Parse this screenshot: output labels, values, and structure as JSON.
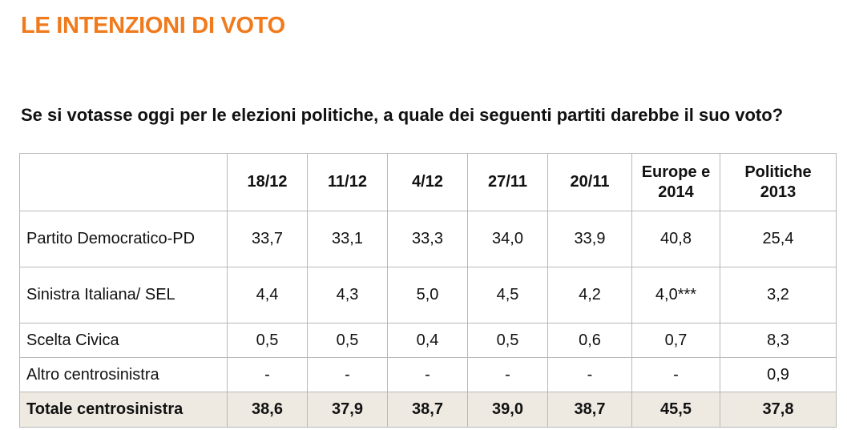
{
  "page": {
    "title": "LE INTENZIONI DI VOTO",
    "question": "Se si votasse oggi per le elezioni politiche, a quale dei seguenti partiti darebbe il suo voto?"
  },
  "table": {
    "columns": [
      "",
      "18/12",
      "11/12",
      "4/12",
      "27/11",
      "20/11",
      "Europe e 2014",
      "Politiche 2013"
    ],
    "rows": [
      {
        "label": "Partito Democratico-PD",
        "values": [
          "33,7",
          "33,1",
          "33,3",
          "34,0",
          "33,9",
          "40,8",
          "25,4"
        ]
      },
      {
        "label": "Sinistra Italiana/ SEL",
        "values": [
          "4,4",
          "4,3",
          "5,0",
          "4,5",
          "4,2",
          "4,0***",
          "3,2"
        ]
      },
      {
        "label": "Scelta Civica",
        "values": [
          "0,5",
          "0,5",
          "0,4",
          "0,5",
          "0,6",
          "0,7",
          "8,3"
        ]
      },
      {
        "label": "Altro centrosinistra",
        "values": [
          "-",
          "-",
          "-",
          "-",
          "-",
          "-",
          "0,9"
        ]
      }
    ],
    "total": {
      "label": "Totale centrosinistra",
      "values": [
        "38,6",
        "37,9",
        "38,7",
        "39,0",
        "38,7",
        "45,5",
        "37,8"
      ]
    }
  },
  "colors": {
    "title": "#f07a1c",
    "total_row_background": "#eeeae2",
    "border": "#b8b8b8"
  }
}
